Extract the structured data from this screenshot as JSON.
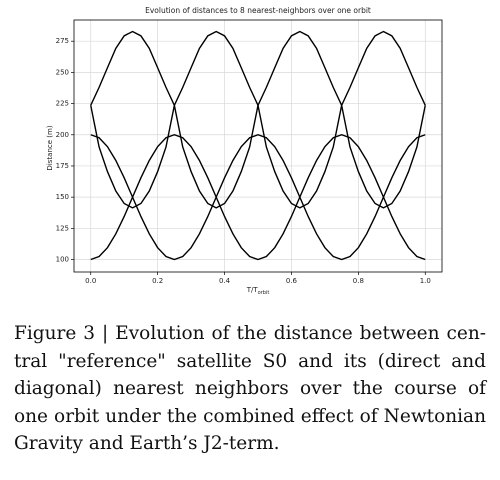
{
  "chart_data": {
    "type": "line",
    "title": "Evolution of distances to 8 nearest-neighbors over one orbit",
    "xlabel": "T/T",
    "xlabel_sub": "orbit",
    "ylabel": "Distance (m)",
    "x": [
      0,
      0.025,
      0.05,
      0.075,
      0.1,
      0.125,
      0.15,
      0.175,
      0.2,
      0.225,
      0.25,
      0.275,
      0.3,
      0.325,
      0.35,
      0.375,
      0.4,
      0.425,
      0.45,
      0.475,
      0.5,
      0.525,
      0.55,
      0.575,
      0.6,
      0.625,
      0.65,
      0.675,
      0.7,
      0.725,
      0.75,
      0.775,
      0.8,
      0.825,
      0.85,
      0.875,
      0.9,
      0.925,
      0.95,
      0.975,
      1
    ],
    "series": [
      {
        "color": "#000000",
        "values": [
          200,
          197.6,
          190.5,
          179.4,
          165.5,
          150,
          134.5,
          120.6,
          109.5,
          102.4,
          100,
          102.4,
          109.5,
          120.6,
          134.5,
          150,
          165.5,
          179.4,
          190.5,
          197.6,
          200,
          197.6,
          190.5,
          179.4,
          165.5,
          150,
          134.5,
          120.6,
          109.5,
          102.4,
          100,
          102.4,
          109.5,
          120.6,
          134.5,
          150,
          165.5,
          179.4,
          190.5,
          197.6,
          200
        ]
      },
      {
        "color": "#000000",
        "values": [
          100,
          102.4,
          109.5,
          120.6,
          134.5,
          150,
          165.5,
          179.4,
          190.5,
          197.6,
          200,
          197.6,
          190.5,
          179.4,
          165.5,
          150,
          134.5,
          120.6,
          109.5,
          102.4,
          100,
          102.4,
          109.5,
          120.6,
          134.5,
          150,
          165.5,
          179.4,
          190.5,
          197.6,
          200,
          197.6,
          190.5,
          179.4,
          165.5,
          150,
          134.5,
          120.6,
          109.5,
          102.4,
          100
        ]
      },
      {
        "color": "#000000",
        "values": [
          223.6,
          238.0,
          253.7,
          269.3,
          279.3,
          282.8,
          279.3,
          269.3,
          253.7,
          238.0,
          223.6,
          190.2,
          170.5,
          154.9,
          144.9,
          141.4,
          144.9,
          154.9,
          170.5,
          190.2,
          223.6,
          238.0,
          253.7,
          269.3,
          279.3,
          282.8,
          279.3,
          269.3,
          253.7,
          238.0,
          223.6,
          190.2,
          170.5,
          154.9,
          144.9,
          141.4,
          144.9,
          154.9,
          170.5,
          190.2,
          223.6
        ]
      },
      {
        "color": "#000000",
        "values": [
          223.6,
          190.2,
          170.5,
          154.9,
          144.9,
          141.4,
          144.9,
          154.9,
          170.5,
          190.2,
          223.6,
          238.0,
          253.7,
          269.3,
          279.3,
          282.8,
          279.3,
          269.3,
          253.7,
          238.0,
          223.6,
          190.2,
          170.5,
          154.9,
          144.9,
          141.4,
          144.9,
          154.9,
          170.5,
          190.2,
          223.6,
          238.0,
          253.7,
          269.3,
          279.3,
          282.8,
          279.3,
          269.3,
          253.7,
          238.0,
          223.6
        ]
      }
    ],
    "xlim": [
      -0.05,
      1.05
    ],
    "ylim": [
      90,
      292
    ],
    "xticks": [
      {
        "value": 0,
        "label": "0.0"
      },
      0.2,
      0.4,
      0.6,
      0.8,
      {
        "value": 1,
        "label": "1.0"
      }
    ],
    "yticks": [
      100,
      125,
      150,
      175,
      200,
      225,
      250,
      275
    ],
    "grid": true
  },
  "caption": {
    "lines": [
      "Figure 3 | Evolution of the distance between cen-",
      "tral \"reference\" satellite S0 and its (direct and",
      "diagonal) nearest neighbors over the course of",
      "one orbit under the combined effect of Newtonian",
      "Gravity and Earth’s J2-term."
    ]
  }
}
